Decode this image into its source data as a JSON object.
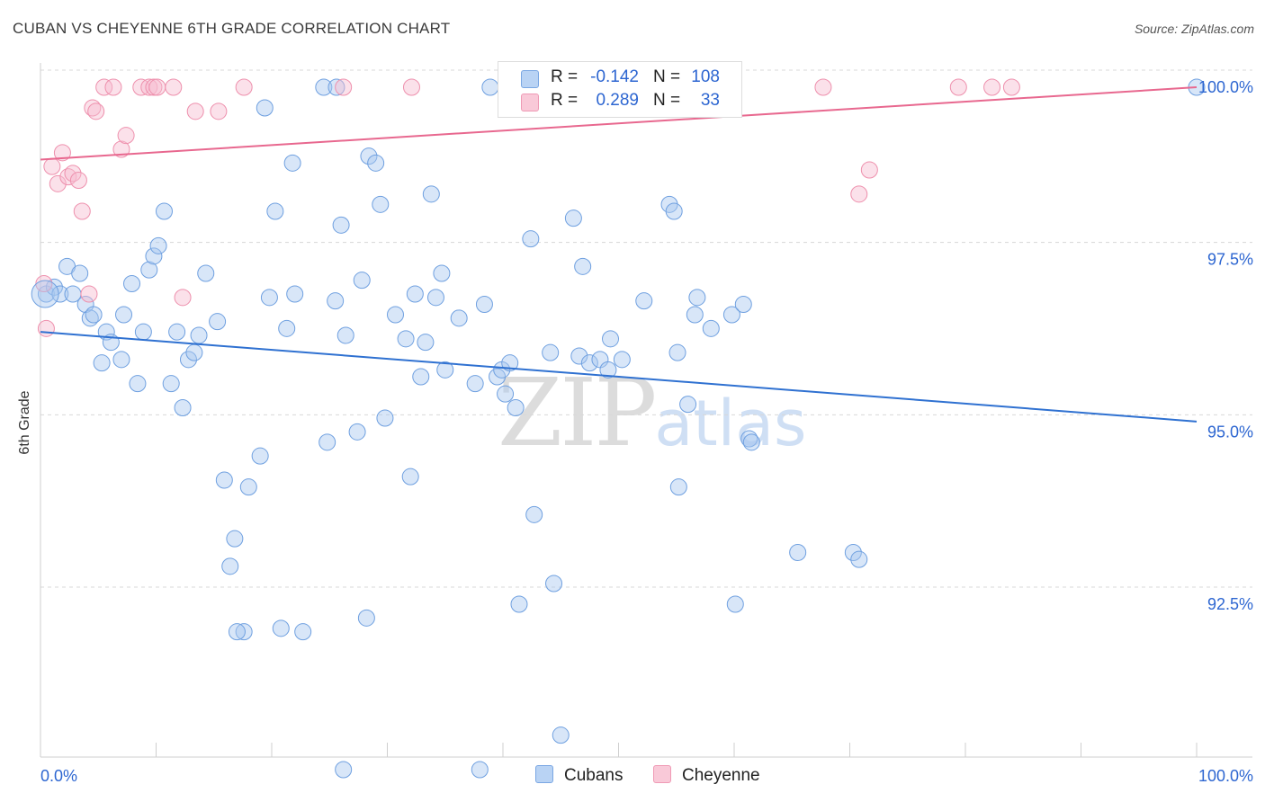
{
  "header": {
    "title": "CUBAN VS CHEYENNE 6TH GRADE CORRELATION CHART",
    "source": "Source: ZipAtlas.com"
  },
  "watermark": {
    "zip": "ZIP",
    "atlas": "atlas"
  },
  "legend": {
    "r_label": "R =",
    "n_label": "N =",
    "series": [
      {
        "name": "Cubans",
        "r": "-0.142",
        "n": "108",
        "fill": "#a9c8ef",
        "stroke": "#6fa0e0"
      },
      {
        "name": "Cheyenne",
        "r": "0.289",
        "n": "33",
        "fill": "#f7bcd0",
        "stroke": "#ee90ad"
      }
    ]
  },
  "chart_data": {
    "type": "scatter",
    "title": "CUBAN VS CHEYENNE 6TH GRADE CORRELATION CHART",
    "xlabel": "",
    "ylabel": "6th Grade",
    "xlim": [
      0,
      100
    ],
    "ylim": [
      90.0,
      100.4
    ],
    "x_tick_labels": [
      "0.0%",
      "100.0%"
    ],
    "y_ticks": [
      {
        "value": 100.0,
        "label": "100.0%"
      },
      {
        "value": 97.5,
        "label": "97.5%"
      },
      {
        "value": 95.0,
        "label": "95.0%"
      },
      {
        "value": 92.5,
        "label": "92.5%"
      }
    ],
    "grid": true,
    "series": [
      {
        "name": "Cubans",
        "color": "#2f71d1",
        "trend": {
          "x0": 0,
          "y0": 96.45,
          "x1": 100,
          "y1": 95.15
        },
        "points": [
          [
            0.5,
            97.0
          ],
          [
            1.2,
            97.1
          ],
          [
            1.7,
            97.0
          ],
          [
            2.3,
            97.4
          ],
          [
            3.4,
            97.3
          ],
          [
            2.8,
            97.0
          ],
          [
            3.9,
            96.85
          ],
          [
            4.3,
            96.65
          ],
          [
            4.6,
            96.7
          ],
          [
            5.3,
            96.0
          ],
          [
            5.7,
            96.45
          ],
          [
            6.1,
            96.3
          ],
          [
            7.0,
            96.05
          ],
          [
            7.2,
            96.7
          ],
          [
            7.9,
            97.15
          ],
          [
            8.4,
            95.7
          ],
          [
            8.9,
            96.45
          ],
          [
            9.4,
            97.35
          ],
          [
            9.8,
            97.55
          ],
          [
            10.2,
            97.7
          ],
          [
            10.7,
            98.2
          ],
          [
            11.3,
            95.7
          ],
          [
            11.8,
            96.45
          ],
          [
            12.3,
            95.35
          ],
          [
            12.8,
            96.05
          ],
          [
            13.3,
            96.15
          ],
          [
            13.7,
            96.4
          ],
          [
            14.3,
            97.3
          ],
          [
            15.3,
            96.6
          ],
          [
            15.9,
            94.3
          ],
          [
            16.4,
            93.05
          ],
          [
            16.8,
            93.45
          ],
          [
            18.0,
            94.2
          ],
          [
            19.0,
            94.65
          ],
          [
            17.6,
            92.1
          ],
          [
            17.0,
            92.1
          ],
          [
            19.4,
            99.7
          ],
          [
            19.8,
            96.95
          ],
          [
            20.3,
            98.2
          ],
          [
            20.8,
            92.15
          ],
          [
            21.3,
            96.5
          ],
          [
            21.8,
            98.9
          ],
          [
            22.0,
            97.0
          ],
          [
            22.7,
            92.1
          ],
          [
            24.5,
            100.0
          ],
          [
            24.8,
            94.85
          ],
          [
            25.5,
            96.9
          ],
          [
            25.6,
            100.0
          ],
          [
            26.0,
            98.0
          ],
          [
            26.4,
            96.4
          ],
          [
            27.4,
            95.0
          ],
          [
            27.8,
            97.2
          ],
          [
            28.2,
            92.3
          ],
          [
            28.4,
            99.0
          ],
          [
            29.0,
            98.9
          ],
          [
            29.4,
            98.3
          ],
          [
            29.8,
            95.2
          ],
          [
            30.7,
            96.7
          ],
          [
            31.6,
            96.35
          ],
          [
            32.0,
            94.35
          ],
          [
            32.4,
            97.0
          ],
          [
            32.9,
            95.8
          ],
          [
            33.3,
            96.3
          ],
          [
            33.8,
            98.45
          ],
          [
            34.2,
            96.95
          ],
          [
            34.7,
            97.3
          ],
          [
            35.0,
            95.9
          ],
          [
            36.2,
            96.65
          ],
          [
            37.6,
            95.7
          ],
          [
            38.4,
            96.85
          ],
          [
            38.9,
            100.0
          ],
          [
            39.5,
            95.8
          ],
          [
            39.9,
            95.9
          ],
          [
            40.2,
            95.55
          ],
          [
            40.6,
            96.0
          ],
          [
            41.1,
            95.35
          ],
          [
            41.4,
            92.5
          ],
          [
            42.4,
            97.8
          ],
          [
            42.7,
            93.8
          ],
          [
            44.1,
            96.15
          ],
          [
            44.4,
            92.8
          ],
          [
            46.1,
            98.1
          ],
          [
            46.9,
            97.4
          ],
          [
            46.6,
            96.1
          ],
          [
            47.5,
            96.0
          ],
          [
            48.4,
            96.05
          ],
          [
            49.1,
            95.9
          ],
          [
            49.3,
            96.35
          ],
          [
            50.3,
            96.05
          ],
          [
            52.2,
            96.9
          ],
          [
            54.4,
            98.3
          ],
          [
            54.8,
            98.2
          ],
          [
            55.1,
            96.15
          ],
          [
            55.2,
            94.2
          ],
          [
            56.0,
            95.4
          ],
          [
            56.6,
            96.7
          ],
          [
            56.8,
            96.95
          ],
          [
            58.0,
            96.5
          ],
          [
            59.8,
            96.7
          ],
          [
            60.1,
            92.5
          ],
          [
            60.8,
            96.85
          ],
          [
            61.3,
            94.9
          ],
          [
            61.5,
            94.85
          ],
          [
            65.5,
            93.25
          ],
          [
            70.3,
            93.25
          ],
          [
            70.8,
            93.15
          ],
          [
            100.0,
            100.0
          ],
          [
            26.2,
            90.1
          ],
          [
            45.0,
            90.6
          ],
          [
            38.0,
            90.1
          ]
        ]
      },
      {
        "name": "Cheyenne",
        "color": "#e8688f",
        "trend": {
          "x0": 0,
          "y0": 98.95,
          "x1": 100,
          "y1": 100.0
        },
        "points": [
          [
            0.3,
            97.15
          ],
          [
            0.5,
            96.5
          ],
          [
            1.0,
            98.85
          ],
          [
            1.5,
            98.6
          ],
          [
            1.9,
            99.05
          ],
          [
            2.4,
            98.7
          ],
          [
            2.8,
            98.75
          ],
          [
            3.3,
            98.65
          ],
          [
            3.6,
            98.2
          ],
          [
            4.2,
            97.0
          ],
          [
            4.5,
            99.7
          ],
          [
            4.8,
            99.65
          ],
          [
            5.5,
            100.0
          ],
          [
            6.3,
            100.0
          ],
          [
            7.0,
            99.1
          ],
          [
            7.4,
            99.3
          ],
          [
            8.7,
            100.0
          ],
          [
            9.4,
            100.0
          ],
          [
            9.8,
            100.0
          ],
          [
            10.1,
            100.0
          ],
          [
            11.5,
            100.0
          ],
          [
            12.3,
            96.95
          ],
          [
            13.4,
            99.65
          ],
          [
            15.4,
            99.65
          ],
          [
            17.6,
            100.0
          ],
          [
            26.2,
            100.0
          ],
          [
            32.1,
            100.0
          ],
          [
            67.7,
            100.0
          ],
          [
            70.8,
            98.45
          ],
          [
            71.7,
            98.8
          ],
          [
            79.4,
            100.0
          ],
          [
            82.3,
            100.0
          ],
          [
            84.0,
            100.0
          ]
        ]
      }
    ]
  }
}
